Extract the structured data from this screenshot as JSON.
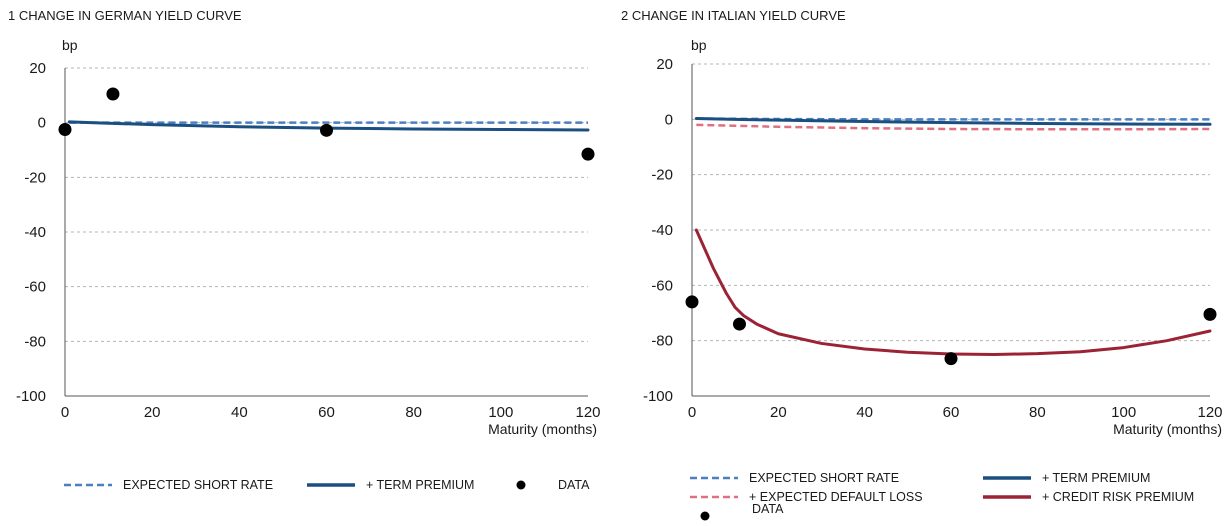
{
  "chart_data": [
    {
      "type": "line",
      "title": "1  CHANGE IN GERMAN YIELD CURVE",
      "ylabel": "bp",
      "xlabel": "Maturity (months)",
      "xlim": [
        0,
        120
      ],
      "ylim": [
        -100,
        20
      ],
      "xticks": [
        0,
        20,
        40,
        60,
        80,
        100,
        120
      ],
      "yticks": [
        20,
        0,
        -20,
        -40,
        -60,
        -80,
        -100
      ],
      "grid": true,
      "legend_position": "bottom",
      "series": [
        {
          "name": "EXPECTED SHORT RATE",
          "style": "dashed",
          "color": "#4a7fc1",
          "x": [
            1,
            10,
            20,
            40,
            60,
            80,
            100,
            120
          ],
          "y": [
            0,
            0,
            0,
            0,
            0,
            0,
            0,
            0
          ]
        },
        {
          "name": "+ TERM PREMIUM",
          "style": "solid",
          "color": "#1b4f82",
          "x": [
            1,
            10,
            20,
            40,
            60,
            80,
            100,
            120
          ],
          "y": [
            0.3,
            -0.2,
            -0.7,
            -1.5,
            -2,
            -2.3,
            -2.5,
            -2.7
          ]
        },
        {
          "name": "DATA",
          "style": "points",
          "color": "#000000",
          "x": [
            0,
            11,
            60,
            120
          ],
          "y": [
            -2.5,
            10.5,
            -2.8,
            -11.5
          ]
        }
      ]
    },
    {
      "type": "line",
      "title": "2  CHANGE IN ITALIAN YIELD CURVE",
      "ylabel": "bp",
      "xlabel": "Maturity (months)",
      "xlim": [
        0,
        120
      ],
      "ylim": [
        -100,
        20
      ],
      "xticks": [
        0,
        20,
        40,
        60,
        80,
        100,
        120
      ],
      "yticks": [
        20,
        0,
        -20,
        -40,
        -60,
        -80,
        -100
      ],
      "grid": true,
      "legend_position": "bottom",
      "series": [
        {
          "name": "EXPECTED SHORT RATE",
          "style": "dashed",
          "color": "#4a7fc1",
          "x": [
            1,
            10,
            20,
            40,
            60,
            80,
            100,
            120
          ],
          "y": [
            0.3,
            0.2,
            0.1,
            0,
            0,
            0,
            0,
            0
          ]
        },
        {
          "name": "+ TERM PREMIUM",
          "style": "solid",
          "color": "#1b4f82",
          "x": [
            1,
            10,
            20,
            40,
            60,
            80,
            100,
            120
          ],
          "y": [
            0.3,
            0,
            -0.3,
            -0.8,
            -1.2,
            -1.5,
            -1.7,
            -1.8
          ]
        },
        {
          "name": "+ EXPECTED DEFAULT LOSS",
          "style": "dashed",
          "color": "#e07080",
          "x": [
            1,
            10,
            20,
            40,
            60,
            80,
            100,
            120
          ],
          "y": [
            -2,
            -2.3,
            -2.7,
            -3.2,
            -3.5,
            -3.6,
            -3.6,
            -3.5
          ]
        },
        {
          "name": "+ CREDIT RISK PREMIUM",
          "style": "solid",
          "color": "#9b2335",
          "x": [
            1,
            3,
            5,
            8,
            10,
            12,
            15,
            20,
            30,
            40,
            50,
            60,
            70,
            80,
            90,
            100,
            110,
            120
          ],
          "y": [
            -40,
            -47,
            -54,
            -63,
            -68,
            -71,
            -74,
            -77.5,
            -81,
            -83,
            -84.2,
            -84.8,
            -85,
            -84.7,
            -84,
            -82.5,
            -80,
            -76.5
          ]
        },
        {
          "name": "DATA",
          "style": "points",
          "color": "#000000",
          "x": [
            0,
            11,
            60,
            120
          ],
          "y": [
            -66,
            -74,
            -86.5,
            -70.5
          ]
        }
      ]
    }
  ]
}
